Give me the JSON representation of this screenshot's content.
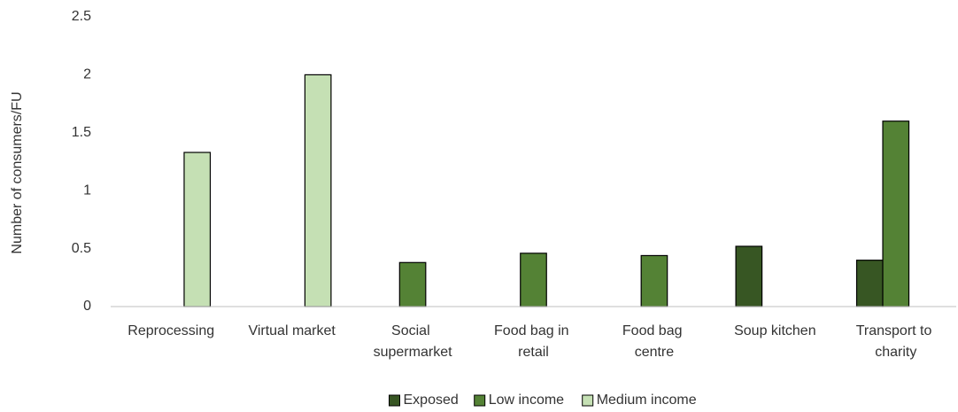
{
  "chart_data": {
    "type": "bar",
    "y_label": "Number of consumers/FU",
    "categories": [
      "Reprocessing",
      "Virtual market",
      "Social supermarket",
      "Food bag in retail",
      "Food bag centre",
      "Soup kitchen",
      "Transport to charity"
    ],
    "series": [
      {
        "name": "Exposed",
        "color": "#375623",
        "values": [
          null,
          null,
          null,
          null,
          null,
          0.52,
          0.4
        ]
      },
      {
        "name": "Low income",
        "color": "#548235",
        "values": [
          null,
          null,
          0.38,
          0.46,
          0.44,
          null,
          1.6
        ]
      },
      {
        "name": "Medium income",
        "color": "#c5e0b4",
        "values": [
          1.33,
          2,
          null,
          null,
          null,
          null,
          null
        ]
      }
    ],
    "ylim": [
      0,
      2.5
    ],
    "yticks": [
      0,
      0.5,
      1,
      1.5,
      2,
      2.5
    ],
    "grid": false,
    "legend": "bottom"
  }
}
